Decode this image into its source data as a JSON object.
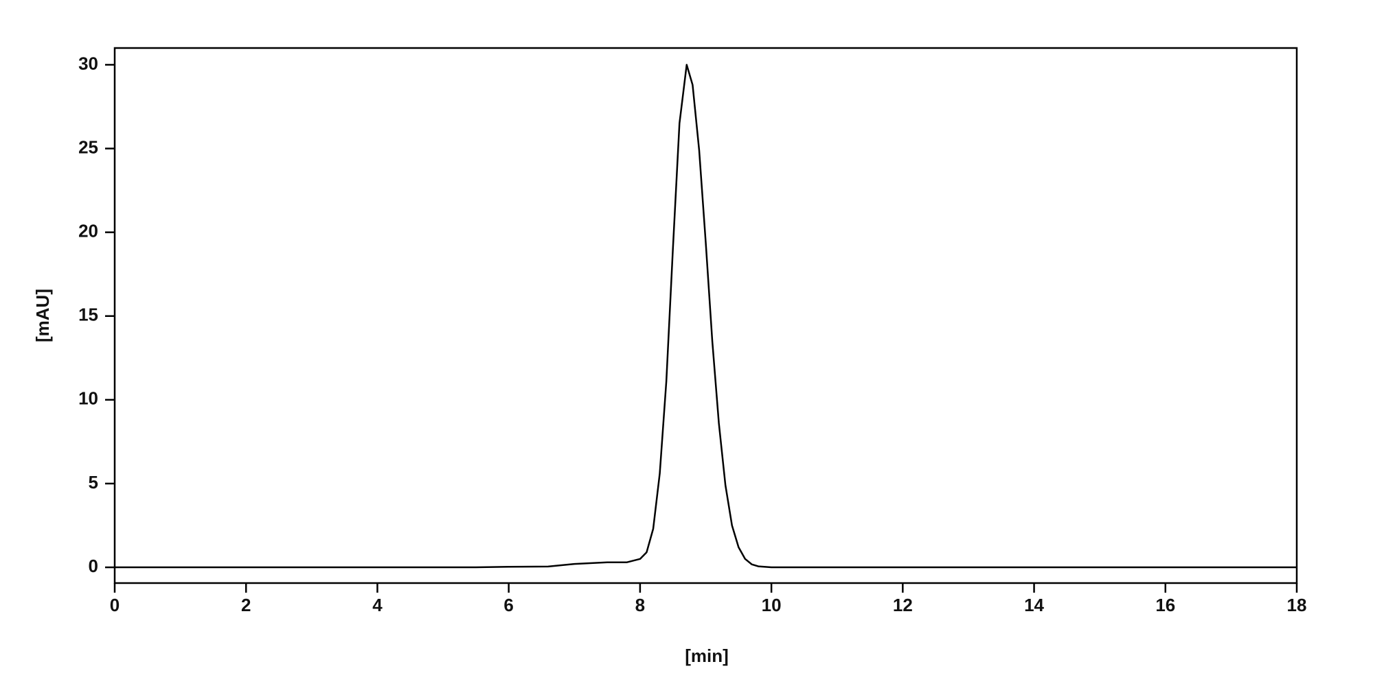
{
  "chart_data": {
    "type": "line",
    "x_label": "[min]",
    "y_label": "[mAU]",
    "x": [
      0,
      2,
      4,
      5.5,
      6,
      6.6,
      7,
      7.5,
      7.8,
      8,
      8.1,
      8.2,
      8.3,
      8.4,
      8.5,
      8.6,
      8.71,
      8.8,
      8.9,
      9,
      9.1,
      9.2,
      9.3,
      9.4,
      9.5,
      9.6,
      9.7,
      9.8,
      10,
      12,
      14,
      16,
      18
    ],
    "values": [
      0,
      0,
      0,
      0,
      0.03,
      0.05,
      0.2,
      0.3,
      0.3,
      0.5,
      0.9,
      2.3,
      5.6,
      11.1,
      19,
      26.5,
      30,
      28.8,
      24.9,
      19.4,
      13.5,
      8.6,
      4.9,
      2.5,
      1.2,
      0.5,
      0.18,
      0.06,
      0,
      0,
      0,
      0,
      0
    ],
    "color": "#000000",
    "xlim": [
      0,
      18
    ],
    "xticks": [
      0,
      2,
      4,
      6,
      8,
      10,
      12,
      14,
      16,
      18
    ],
    "ylim": [
      -0.94,
      31
    ],
    "yticks": [
      0,
      5,
      10,
      15,
      20,
      25,
      30
    ],
    "grid": false
  }
}
